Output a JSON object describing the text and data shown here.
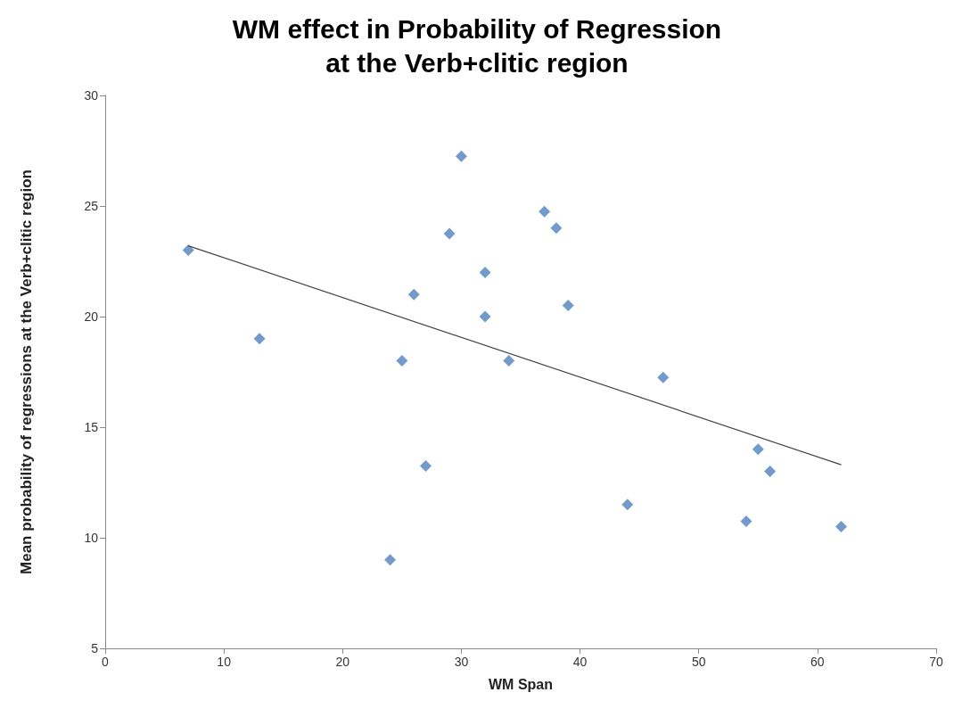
{
  "chart_data": {
    "type": "scatter",
    "title": "WM effect in Probability of Regression\nat the Verb+clitic region",
    "xlabel": "WM Span",
    "ylabel": "Mean probability of regressions at the Verb+clitic region",
    "xlim": [
      0,
      70
    ],
    "xticks": [
      0,
      10,
      20,
      30,
      40,
      50,
      60,
      70
    ],
    "ylim": [
      5,
      30
    ],
    "yticks": [
      5,
      10,
      15,
      20,
      25,
      30
    ],
    "grid": false,
    "marker": "diamond",
    "series": [
      {
        "color": "#4f81bd",
        "x": [
          7,
          13,
          24,
          25,
          26,
          27,
          29,
          30,
          32,
          32,
          34,
          37,
          38,
          39,
          44,
          47,
          54,
          55,
          56,
          62
        ],
        "values": [
          23,
          19,
          9,
          18,
          21,
          13.25,
          23.75,
          27.25,
          22,
          20,
          18,
          24.75,
          24,
          20.5,
          11.5,
          17.25,
          10.75,
          14,
          13,
          10.5
        ]
      },
      {
        "type": "line",
        "color": "#404040",
        "marker": "none",
        "line_style": "solid",
        "x": [
          7,
          62
        ],
        "values": [
          23.2,
          13.3
        ]
      }
    ]
  }
}
